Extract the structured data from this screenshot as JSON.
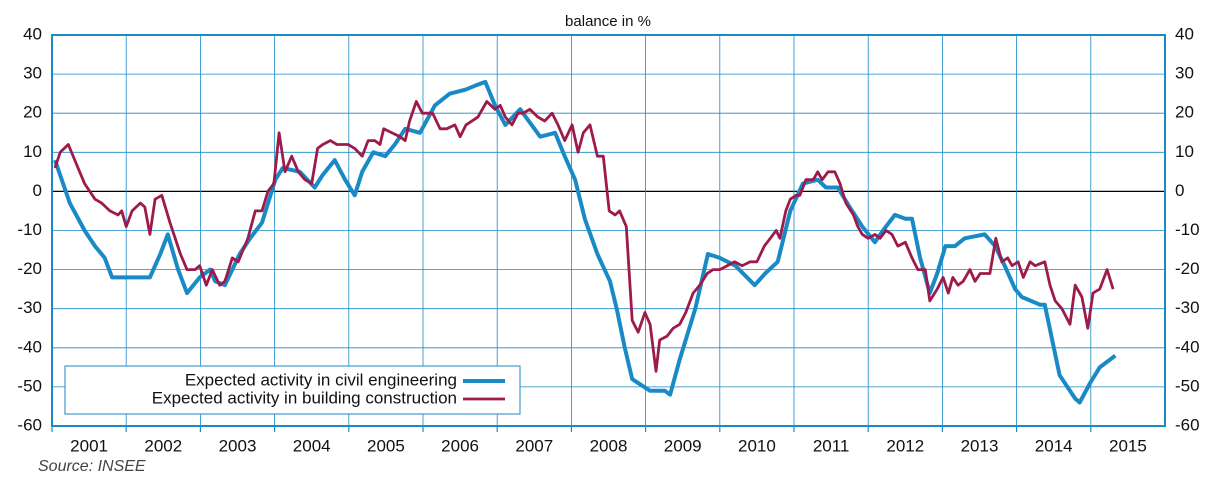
{
  "chart_data": {
    "type": "line",
    "y_label": "balance in %",
    "source": "Source: INSEE",
    "xlim": [
      2001,
      2016
    ],
    "xticks": [
      2001,
      2002,
      2003,
      2004,
      2005,
      2006,
      2007,
      2008,
      2009,
      2010,
      2011,
      2012,
      2013,
      2014,
      2015
    ],
    "ylim": [
      -60,
      40
    ],
    "yticks": [
      40,
      30,
      20,
      10,
      0,
      -10,
      -20,
      -30,
      -40,
      -50,
      -60
    ],
    "y2lim": [
      -60,
      40
    ],
    "y2ticks": [
      40,
      30,
      20,
      10,
      0,
      -10,
      -20,
      -30,
      -40,
      -50,
      -60
    ],
    "grid": true,
    "legend": "lower left",
    "series": [
      {
        "name": "Expected activity in civil engineering",
        "color": "#1a8ac6",
        "x": [
          2001.04,
          2001.24,
          2001.44,
          2001.58,
          2001.71,
          2001.81,
          2002.32,
          2002.46,
          2002.56,
          2002.7,
          2002.82,
          2002.99,
          2003.13,
          2003.2,
          2003.33,
          2003.53,
          2003.67,
          2003.83,
          2004.01,
          2004.11,
          2004.34,
          2004.54,
          2004.64,
          2004.81,
          2004.95,
          2005.08,
          2005.18,
          2005.33,
          2005.49,
          2005.62,
          2005.76,
          2005.96,
          2006.16,
          2006.36,
          2006.57,
          2006.7,
          2006.84,
          2006.97,
          2007.11,
          2007.31,
          2007.58,
          2007.78,
          2007.91,
          2008.05,
          2008.18,
          2008.35,
          2008.52,
          2008.61,
          2008.72,
          2008.82,
          2009.06,
          2009.26,
          2009.33,
          2009.46,
          2009.67,
          2009.84,
          2010.0,
          2010.21,
          2010.47,
          2010.61,
          2010.78,
          2010.95,
          2011.12,
          2011.32,
          2011.43,
          2011.59,
          2011.75,
          2011.92,
          2012.09,
          2012.2,
          2012.36,
          2012.5,
          2012.59,
          2012.7,
          2012.83,
          2012.93,
          2013.04,
          2013.17,
          2013.3,
          2013.57,
          2013.71,
          2013.84,
          2013.98,
          2014.07,
          2014.32,
          2014.38,
          2014.58,
          2014.79,
          2014.85,
          2014.99,
          2015.12,
          2015.33
        ],
        "values": [
          8,
          -3,
          -10,
          -14,
          -17,
          -22,
          -22,
          -16,
          -11,
          -20,
          -26,
          -22,
          -20,
          -23,
          -24,
          -16,
          -12,
          -8,
          3,
          6,
          5,
          1,
          4,
          8,
          3,
          -1,
          5,
          10,
          9,
          12,
          16,
          15,
          22,
          25,
          26,
          27,
          28,
          22,
          17,
          21,
          14,
          15,
          9,
          3,
          -7,
          -16,
          -23,
          -30,
          -40,
          -48,
          -51,
          -51,
          -52,
          -43,
          -30,
          -16,
          -17,
          -19,
          -24,
          -21,
          -18,
          -5,
          2,
          3,
          1,
          1,
          -4,
          -9,
          -13,
          -10,
          -6,
          -7,
          -7,
          -17,
          -26,
          -21,
          -14,
          -14,
          -12,
          -11,
          -14,
          -19,
          -25,
          -27,
          -29,
          -29,
          -47,
          -53,
          -54,
          -49,
          -45,
          -42
        ]
      },
      {
        "name": "Expected activity in building construction",
        "color": "#9e1a4a",
        "x": [
          2001.04,
          2001.11,
          2001.22,
          2001.35,
          2001.44,
          2001.58,
          2001.67,
          2001.78,
          2001.89,
          2001.94,
          2002.0,
          2002.08,
          2002.19,
          2002.25,
          2002.32,
          2002.39,
          2002.48,
          2002.59,
          2002.73,
          2002.82,
          2002.93,
          2002.99,
          2003.08,
          2003.16,
          2003.26,
          2003.33,
          2003.43,
          2003.51,
          2003.64,
          2003.74,
          2003.83,
          2003.91,
          2003.99,
          2004.06,
          2004.14,
          2004.23,
          2004.32,
          2004.41,
          2004.5,
          2004.58,
          2004.65,
          2004.75,
          2004.84,
          2004.99,
          2005.08,
          2005.18,
          2005.26,
          2005.35,
          2005.42,
          2005.47,
          2005.58,
          2005.69,
          2005.76,
          2005.82,
          2005.91,
          2005.99,
          2006.13,
          2006.23,
          2006.32,
          2006.43,
          2006.5,
          2006.58,
          2006.74,
          2006.86,
          2006.97,
          2007.04,
          2007.11,
          2007.2,
          2007.28,
          2007.35,
          2007.44,
          2007.55,
          2007.64,
          2007.74,
          2007.82,
          2007.91,
          2008.01,
          2008.09,
          2008.16,
          2008.25,
          2008.35,
          2008.43,
          2008.51,
          2008.59,
          2008.65,
          2008.74,
          2008.82,
          2008.9,
          2008.99,
          2009.06,
          2009.14,
          2009.19,
          2009.29,
          2009.37,
          2009.46,
          2009.54,
          2009.64,
          2009.73,
          2009.83,
          2009.91,
          2010.0,
          2010.1,
          2010.2,
          2010.3,
          2010.41,
          2010.5,
          2010.6,
          2010.68,
          2010.76,
          2010.81,
          2010.89,
          2010.95,
          2011.03,
          2011.08,
          2011.16,
          2011.26,
          2011.32,
          2011.38,
          2011.46,
          2011.55,
          2011.62,
          2011.7,
          2011.8,
          2011.86,
          2011.92,
          2012.0,
          2012.09,
          2012.16,
          2012.24,
          2012.32,
          2012.4,
          2012.5,
          2012.59,
          2012.67,
          2012.77,
          2012.83,
          2012.93,
          2013.01,
          2013.08,
          2013.14,
          2013.21,
          2013.28,
          2013.37,
          2013.44,
          2013.51,
          2013.64,
          2013.72,
          2013.8,
          2013.88,
          2013.94,
          2014.02,
          2014.09,
          2014.18,
          2014.25,
          2014.38,
          2014.45,
          2014.52,
          2014.61,
          2014.72,
          2014.79,
          2014.88,
          2014.96,
          2015.03,
          2015.12,
          2015.22,
          2015.3
        ],
        "values": [
          6,
          10,
          12,
          6,
          2,
          -2,
          -3,
          -5,
          -6,
          -5,
          -9,
          -5,
          -3,
          -4,
          -11,
          -2,
          -1,
          -8,
          -16,
          -20,
          -20,
          -19,
          -24,
          -20,
          -24,
          -23,
          -17,
          -18,
          -12,
          -5,
          -5,
          0,
          2,
          15,
          5,
          9,
          5,
          3,
          2,
          11,
          12,
          13,
          12,
          12,
          11,
          9,
          13,
          13,
          12,
          16,
          15,
          14,
          13,
          18,
          23,
          20,
          20,
          16,
          16,
          17,
          14,
          17,
          19,
          23,
          21,
          22,
          19,
          17,
          20,
          20,
          21,
          19,
          18,
          20,
          17,
          13,
          17,
          10,
          15,
          17,
          9,
          9,
          -5,
          -6,
          -5,
          -9,
          -33,
          -36,
          -31,
          -34,
          -46,
          -38,
          -37,
          -35,
          -34,
          -31,
          -26,
          -24,
          -21,
          -20,
          -20,
          -19,
          -18,
          -19,
          -18,
          -18,
          -14,
          -12,
          -10,
          -12,
          -5,
          -2,
          -1,
          -1,
          3,
          3,
          5,
          3,
          5,
          5,
          2,
          -3,
          -6,
          -9,
          -11,
          -12,
          -11,
          -12,
          -10,
          -11,
          -14,
          -13,
          -17,
          -20,
          -20,
          -28,
          -25,
          -22,
          -26,
          -22,
          -24,
          -23,
          -20,
          -23,
          -21,
          -21,
          -12,
          -18,
          -17,
          -19,
          -18,
          -22,
          -18,
          -19,
          -18,
          -24,
          -28,
          -30,
          -34,
          -24,
          -27,
          -35,
          -26,
          -25,
          -20,
          -25
        ]
      }
    ]
  }
}
